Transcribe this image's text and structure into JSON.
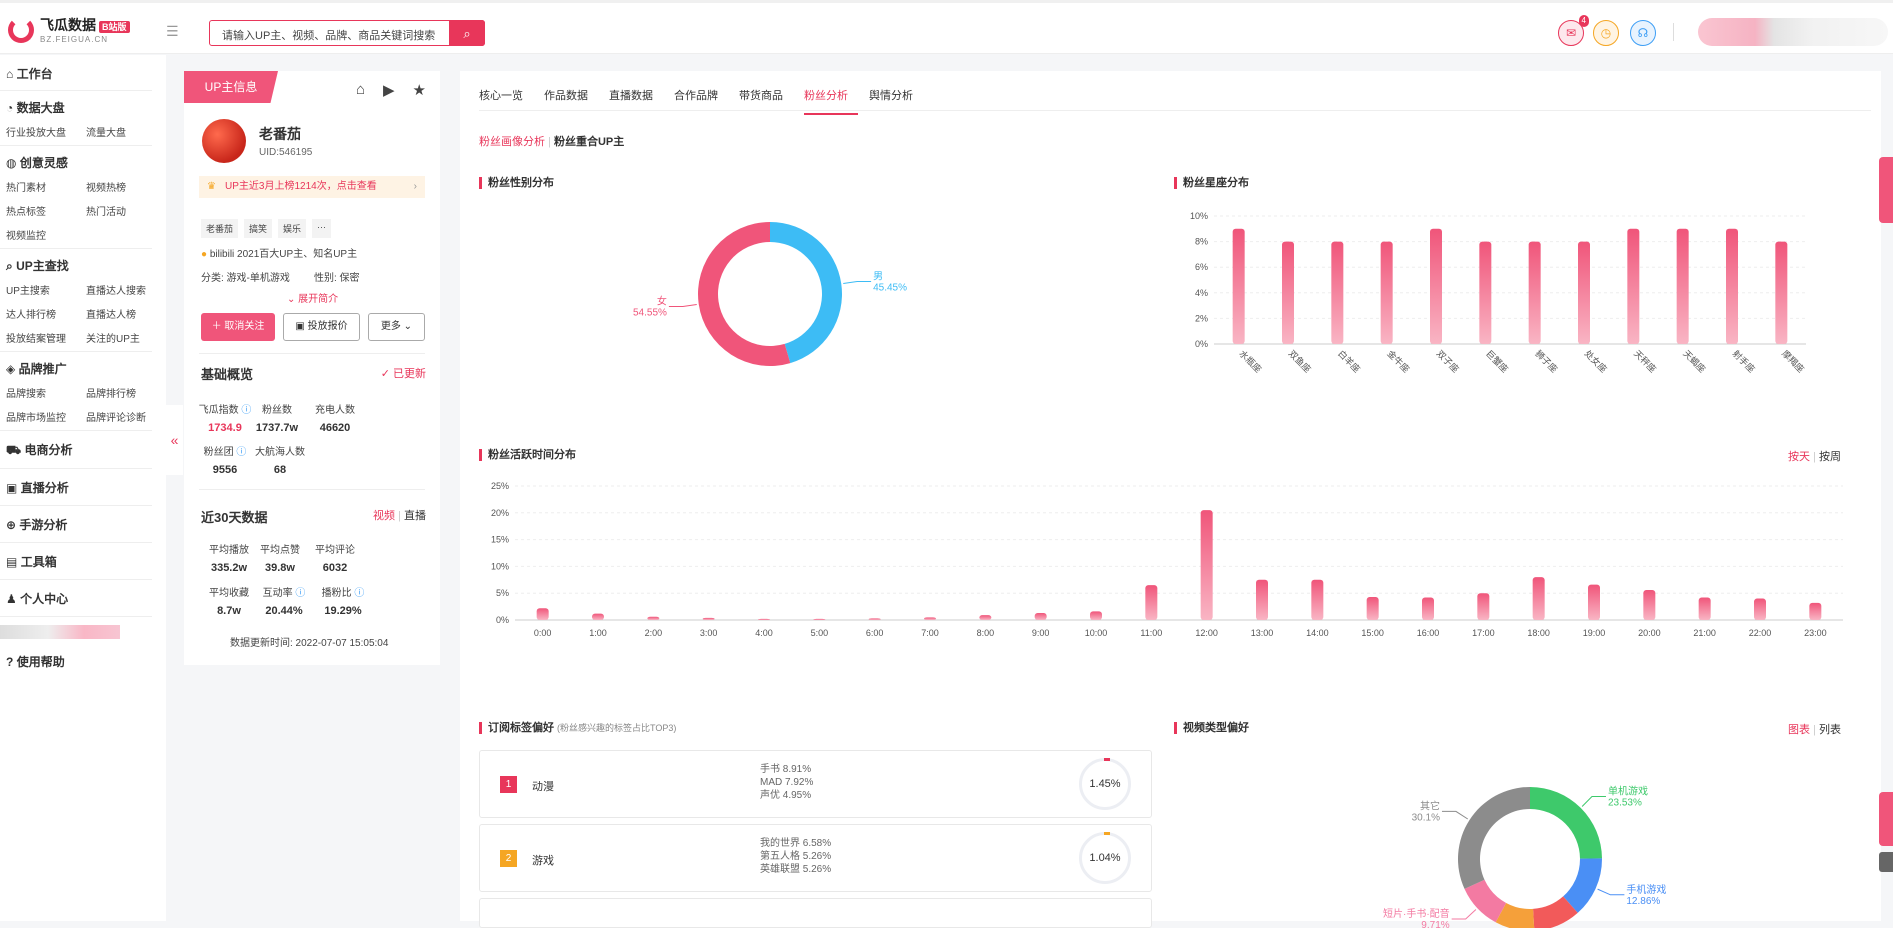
{
  "app": {
    "logo": "飞瓜数据",
    "logo_badge": "B站版",
    "logo_sub": "BZ.FEIGUA.CN"
  },
  "search": {
    "placeholder": "请输入UP主、视频、品牌、商品关键词搜索"
  },
  "header": {
    "mail_badge": "4"
  },
  "sidebar": {
    "workbench": "工作台",
    "data_board": {
      "title": "数据大盘",
      "items": [
        "行业投放大盘",
        "流量大盘"
      ]
    },
    "creative": {
      "title": "创意灵感",
      "items": [
        "热门素材",
        "视频热榜",
        "热点标签",
        "热门活动",
        "视频监控"
      ]
    },
    "up_search": {
      "title": "UP主查找",
      "items": [
        "UP主搜索",
        "直播达人搜索",
        "达人排行榜",
        "直播达人榜",
        "投放结案管理",
        "关注的UP主"
      ]
    },
    "brand": {
      "title": "品牌推广",
      "items": [
        "品牌搜索",
        "品牌排行榜",
        "品牌市场监控",
        "品牌评论诊断"
      ]
    },
    "ecommerce": "电商分析",
    "live": "直播分析",
    "mobile_game": "手游分析",
    "toolbox": "工具箱",
    "personal": "个人中心",
    "help": "使用帮助"
  },
  "profile": {
    "tab": "UP主信息",
    "name": "老番茄",
    "uid": "UID:546195",
    "notice": "UP主近3月上榜1214次，点击查看",
    "tags": [
      "老番茄",
      "搞笑",
      "娱乐",
      "···"
    ],
    "award": "bilibili 2021百大UP主、知名UP主",
    "category": "分类: 游戏-单机游戏",
    "gender": "性别: 保密",
    "expand": "展开简介",
    "btn_unfollow": "取消关注",
    "btn_quote": "投放报价",
    "btn_more": "更多",
    "overview_title": "基础概览",
    "updated": "已更新",
    "stats": [
      {
        "label": "飞瓜指数",
        "value": "1734.9"
      },
      {
        "label": "粉丝数",
        "value": "1737.7w"
      },
      {
        "label": "充电人数",
        "value": "46620"
      },
      {
        "label": "粉丝团",
        "value": "9556"
      },
      {
        "label": "大航海人数",
        "value": "68"
      }
    ],
    "recent_title": "近30天数据",
    "recent_video": "视频",
    "recent_live": "直播",
    "recent": [
      {
        "label": "平均播放",
        "value": "335.2w"
      },
      {
        "label": "平均点赞",
        "value": "39.8w"
      },
      {
        "label": "平均评论",
        "value": "6032"
      },
      {
        "label": "平均收藏",
        "value": "8.7w"
      },
      {
        "label": "互动率",
        "value": "20.44%"
      },
      {
        "label": "播粉比",
        "value": "19.29%"
      }
    ],
    "update_time": "数据更新时间:  2022-07-07 15:05:04"
  },
  "main": {
    "tabs": [
      "核心一览",
      "作品数据",
      "直播数据",
      "合作品牌",
      "带货商品",
      "粉丝分析",
      "舆情分析"
    ],
    "active_tab": 5,
    "subtab_active": "粉丝画像分析",
    "subtab_other": "粉丝重合UP主",
    "gender_title": "粉丝性别分布",
    "zodiac_title": "粉丝星座分布",
    "active_title": "粉丝活跃时间分布",
    "by_day": "按天",
    "by_week": "按周",
    "tag_title": "订阅标签偏好",
    "tag_sub": "(粉丝感兴趣的标签占比TOP3)",
    "vtype_title": "视频类型偏好",
    "vtype_chart": "图表",
    "vtype_list": "列表"
  },
  "tag_cards": [
    {
      "rank": "1",
      "name": "动漫",
      "subs": [
        "手书 8.91%",
        "MAD 7.92%",
        "声优 4.95%"
      ],
      "pct": "1.45%",
      "color": "#e8365a",
      "dot": "#e8365a"
    },
    {
      "rank": "2",
      "name": "游戏",
      "subs": [
        "我的世界 6.58%",
        "第五人格 5.26%",
        "英雄联盟 5.26%"
      ],
      "pct": "1.04%",
      "color": "#f5a623",
      "dot": "#f5a623"
    }
  ],
  "chart_data": [
    {
      "type": "pie",
      "title": "粉丝性别分布",
      "slices": [
        {
          "name": "男",
          "value": 45.45,
          "label": "45.45%",
          "color": "#3dbcf5"
        },
        {
          "name": "女",
          "value": 54.55,
          "label": "54.55%",
          "color": "#f0557a"
        }
      ]
    },
    {
      "type": "bar",
      "title": "粉丝星座分布",
      "categories": [
        "水瓶座",
        "双鱼座",
        "白羊座",
        "金牛座",
        "双子座",
        "巨蟹座",
        "狮子座",
        "处女座",
        "天秤座",
        "天蝎座",
        "射手座",
        "摩羯座"
      ],
      "values": [
        9,
        8,
        8,
        8,
        9,
        8,
        8,
        8,
        9,
        9,
        9,
        8
      ],
      "ylim": [
        0,
        10
      ],
      "yticks": [
        "0%",
        "2%",
        "4%",
        "6%",
        "8%",
        "10%"
      ]
    },
    {
      "type": "bar",
      "title": "粉丝活跃时间分布",
      "categories": [
        "0:00",
        "1:00",
        "2:00",
        "3:00",
        "4:00",
        "5:00",
        "6:00",
        "7:00",
        "8:00",
        "9:00",
        "10:00",
        "11:00",
        "12:00",
        "13:00",
        "14:00",
        "15:00",
        "16:00",
        "17:00",
        "18:00",
        "19:00",
        "20:00",
        "21:00",
        "22:00",
        "23:00"
      ],
      "values": [
        2.2,
        1.2,
        0.6,
        0.4,
        0.2,
        0.2,
        0.3,
        0.5,
        0.9,
        1.3,
        1.6,
        6.5,
        20.5,
        7.5,
        7.5,
        4.3,
        4.2,
        5,
        8,
        6.6,
        5.6,
        4.2,
        4,
        3.2
      ],
      "ylim": [
        0,
        25
      ],
      "yticks": [
        "0%",
        "5%",
        "10%",
        "15%",
        "20%",
        "25%"
      ]
    },
    {
      "type": "pie",
      "title": "视频类型偏好",
      "slices": [
        {
          "name": "单机游戏",
          "value": 23.53,
          "label": "23.53%",
          "color": "#3ec96b"
        },
        {
          "name": "手机游戏",
          "value": 12.86,
          "label": "12.86%",
          "color": "#4a8ff5"
        },
        {
          "name": "",
          "value": 10,
          "label": "",
          "color": "#f25a5a"
        },
        {
          "name": "",
          "value": 8.4,
          "label": "",
          "color": "#f5a03a"
        },
        {
          "name": "短片·手书·配音",
          "value": 9.71,
          "label": "9.71%",
          "color": "#f37aa2"
        },
        {
          "name": "其它",
          "value": 30.1,
          "label": "30.1%",
          "color": "#8c8c8c"
        }
      ]
    }
  ]
}
